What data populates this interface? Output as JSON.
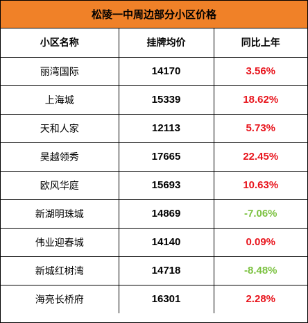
{
  "title": "松陵一中周边部分小区价格",
  "colors": {
    "header_bg": "#f08128",
    "positive": "#e8141c",
    "negative": "#7cc241"
  },
  "table": {
    "headers": [
      "小区名称",
      "挂牌均价",
      "同比上年"
    ],
    "rows": [
      {
        "name": "丽湾国际",
        "price": "14170",
        "change": "3.56%",
        "trend": "up"
      },
      {
        "name": "上海城",
        "price": "15339",
        "change": "18.62%",
        "trend": "up"
      },
      {
        "name": "天和人家",
        "price": "12113",
        "change": "5.73%",
        "trend": "up"
      },
      {
        "name": "吴越领秀",
        "price": "17665",
        "change": "22.45%",
        "trend": "up"
      },
      {
        "name": "欧风华庭",
        "price": "15693",
        "change": "10.63%",
        "trend": "up"
      },
      {
        "name": "新湖明珠城",
        "price": "14869",
        "change": "-7.06%",
        "trend": "down"
      },
      {
        "name": "伟业迎春城",
        "price": "14140",
        "change": "0.09%",
        "trend": "up"
      },
      {
        "name": "新城红树湾",
        "price": "14718",
        "change": "-8.48%",
        "trend": "down"
      },
      {
        "name": "海亮长桥府",
        "price": "16301",
        "change": "2.28%",
        "trend": "up"
      }
    ]
  }
}
